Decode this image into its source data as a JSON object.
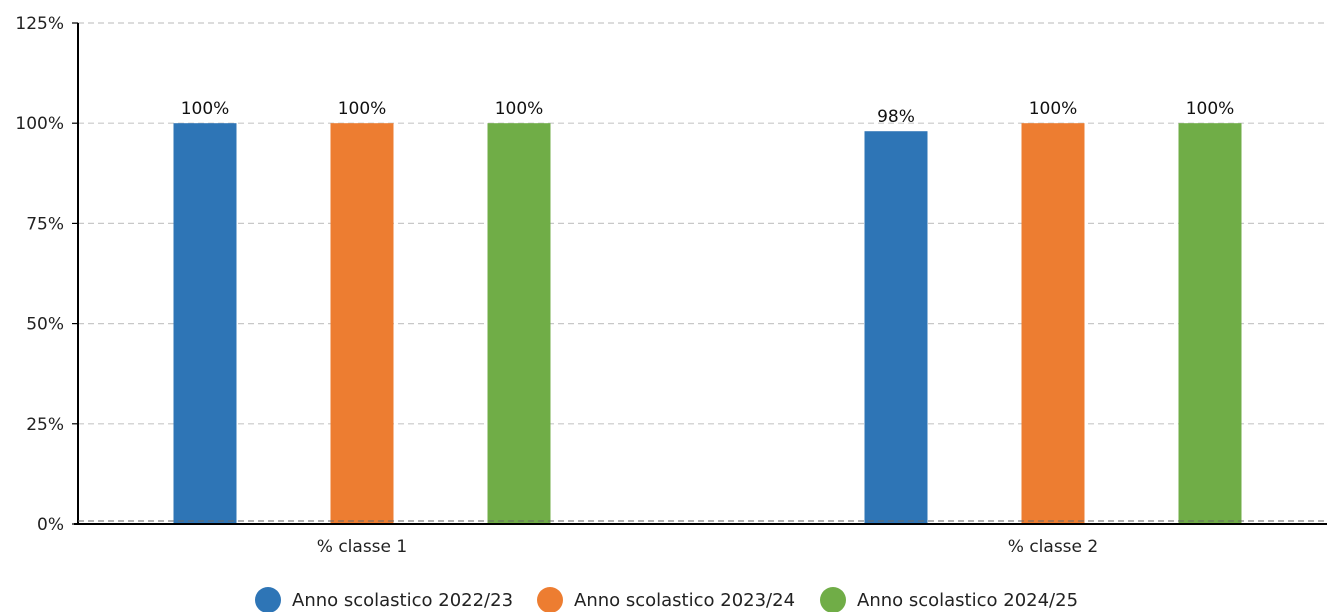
{
  "chart_data": {
    "type": "bar",
    "categories": [
      "% classe 1",
      "% classe 2"
    ],
    "series": [
      {
        "name": "Anno scolastico 2022/23",
        "color": "#2e75b6",
        "values": [
          100,
          98
        ],
        "labels": [
          "100%",
          "98%"
        ]
      },
      {
        "name": "Anno scolastico 2023/24",
        "color": "#ed7d31",
        "values": [
          100,
          100
        ],
        "labels": [
          "100%",
          "100%"
        ]
      },
      {
        "name": "Anno scolastico 2024/25",
        "color": "#70ad47",
        "values": [
          100,
          100
        ],
        "labels": [
          "100%",
          "100%"
        ]
      }
    ],
    "ylim": [
      0,
      125
    ],
    "yticks": [
      0,
      25,
      50,
      75,
      100,
      125
    ],
    "ytick_labels": [
      "0%",
      "25%",
      "50%",
      "75%",
      "100%",
      "125%"
    ],
    "grid": true,
    "legend_position": "bottom"
  }
}
